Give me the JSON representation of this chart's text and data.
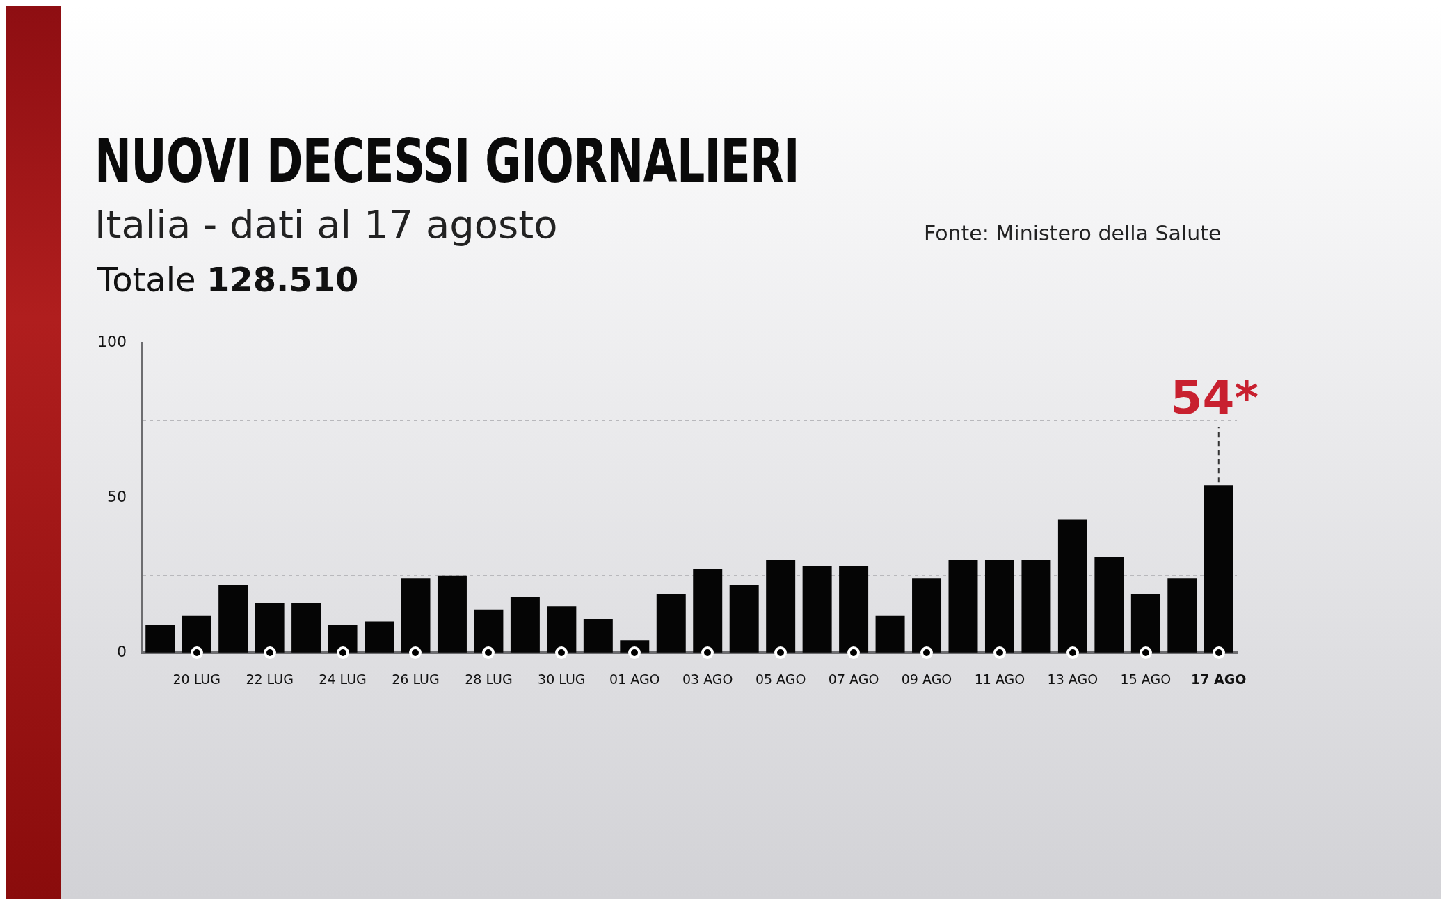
{
  "chart_data": {
    "type": "bar",
    "title": "NUOVI DECESSI GIORNALIERI",
    "subtitle": "Italia - dati al 17 agosto",
    "annotations": [
      "Totale 128.510",
      "Fonte: Ministero della Salute",
      {
        "text": "54*",
        "x": "17 AGO",
        "y": 54
      }
    ],
    "categories": [
      null,
      "20 LUG",
      null,
      "22 LUG",
      null,
      "24 LUG",
      null,
      "26 LUG",
      null,
      "28 LUG",
      null,
      "30 LUG",
      null,
      "01 AGO",
      null,
      "03 AGO",
      null,
      "05 AGO",
      null,
      "07 AGO",
      null,
      "09 AGO",
      null,
      "11 AGO",
      null,
      "13 AGO",
      null,
      "15 AGO",
      null,
      "17 AGO"
    ],
    "values": [
      9,
      12,
      22,
      16,
      16,
      9,
      10,
      24,
      25,
      14,
      18,
      15,
      11,
      4,
      19,
      27,
      22,
      30,
      28,
      28,
      12,
      24,
      30,
      30,
      30,
      43,
      31,
      19,
      24,
      54
    ],
    "color": "#050505",
    "ylim": [
      0,
      100
    ],
    "yticks": [
      0,
      {
        "value": 25,
        "label": null
      },
      50,
      {
        "value": 75,
        "label": null
      },
      100
    ],
    "grid": "y"
  }
}
